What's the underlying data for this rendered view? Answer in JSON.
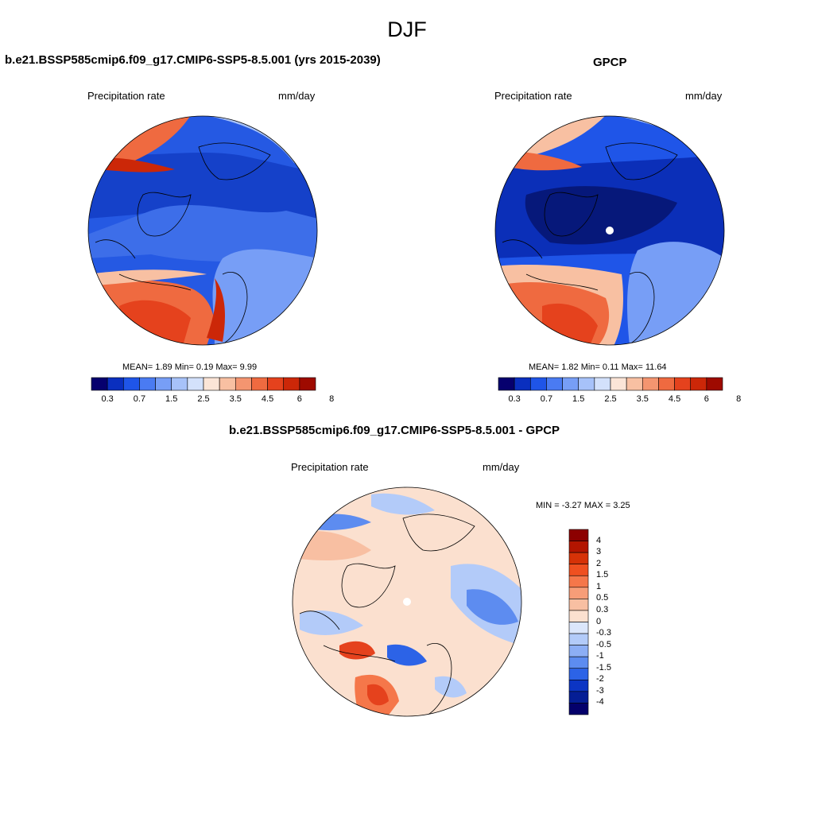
{
  "main_title": "DJF",
  "panels": [
    {
      "title": "b.e21.BSSP585cmip6.f09_g17.CMIP6-SSP5-8.5.001 (yrs 2015-2039)",
      "left_label": "Precipitation rate",
      "right_label": "mm/day",
      "stats": "MEAN=   1.89  Min=   0.19  Max=   9.99"
    },
    {
      "title": "GPCP",
      "left_label": "Precipitation rate",
      "right_label": "mm/day",
      "stats": "MEAN=   1.82  Min=   0.11  Max=  11.64"
    },
    {
      "title": "b.e21.BSSP585cmip6.f09_g17.CMIP6-SSP5-8.5.001 - GPCP",
      "left_label": "Precipitation rate",
      "right_label": "mm/day",
      "stats": "MIN =  -3.27 MAX =   3.25"
    }
  ],
  "abs_colorbar": {
    "labels": [
      "0.3",
      "0.7",
      "1.5",
      "2.5",
      "3.5",
      "4.5",
      "6",
      "8"
    ],
    "colors": [
      "#06006e",
      "#0a2fbf",
      "#1f55e8",
      "#4a7bf2",
      "#779ef6",
      "#a7c2f9",
      "#d3e1fb",
      "#fbe5d7",
      "#f8c0a2",
      "#f49570",
      "#ef6a40",
      "#e5421d",
      "#cc2708",
      "#9e0a00"
    ]
  },
  "diff_colorbar": {
    "labels": [
      "4",
      "3",
      "2",
      "1.5",
      "1",
      "0.5",
      "0.3",
      "0",
      "-0.3",
      "-0.5",
      "-1",
      "-1.5",
      "-2",
      "-3",
      "-4"
    ],
    "colors": [
      "#8c0000",
      "#b31500",
      "#d63207",
      "#ef5020",
      "#f5774a",
      "#f79d78",
      "#f8bfa2",
      "#fbe0cf",
      "#dbe6fb",
      "#b3cbf9",
      "#8caef5",
      "#5d8cf0",
      "#2c63e7",
      "#0c35c4",
      "#051e95",
      "#04006b"
    ]
  },
  "maps": [
    {
      "shading": "absolute",
      "regions": [
        {
          "color": "#2559e3",
          "note": "base"
        },
        {
          "color": "#1541c9"
        },
        {
          "color": "#3d6ee9"
        },
        {
          "color": "#779ef6"
        },
        {
          "color": "#a7c2f9"
        },
        {
          "color": "#ef6a40"
        },
        {
          "color": "#e5421d"
        },
        {
          "color": "#f8c0a2"
        },
        {
          "color": "#cc2708"
        }
      ]
    },
    {
      "shading": "absolute",
      "regions": [
        {
          "color": "#1f55e8"
        },
        {
          "color": "#0b2fb8"
        },
        {
          "color": "#06187a"
        },
        {
          "color": "#779ef6"
        },
        {
          "color": "#a7c2f9"
        },
        {
          "color": "#ef6a40"
        },
        {
          "color": "#e5421d"
        },
        {
          "color": "#f8c0a2"
        }
      ]
    },
    {
      "shading": "difference",
      "regions": [
        {
          "color": "#fbe0cf"
        },
        {
          "color": "#f8bfa2"
        },
        {
          "color": "#f5774a"
        },
        {
          "color": "#b3cbf9"
        },
        {
          "color": "#5d8cf0"
        },
        {
          "color": "#2c63e7"
        },
        {
          "color": "#e5421d"
        }
      ]
    }
  ]
}
